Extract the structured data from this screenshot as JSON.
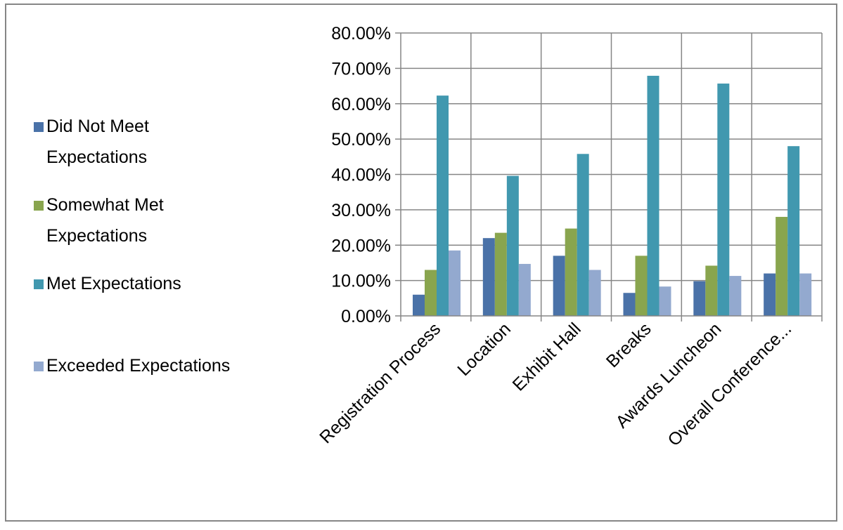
{
  "chart_data": {
    "type": "bar",
    "categories": [
      "Registration Process",
      "Location",
      "Exhibit Hall",
      "Breaks",
      "Awards Luncheon",
      "Overall Conference..."
    ],
    "series": [
      {
        "name": "Did Not Meet Expectations",
        "color": "#4a72a8",
        "values": [
          6.0,
          22.0,
          17.0,
          6.5,
          9.8,
          12.0
        ]
      },
      {
        "name": "Somewhat Met Expectations",
        "color": "#89a54e",
        "values": [
          13.0,
          23.5,
          24.7,
          17.0,
          14.2,
          28.0
        ]
      },
      {
        "name": "Met Expectations",
        "color": "#4198af",
        "values": [
          62.3,
          39.6,
          45.8,
          67.9,
          65.7,
          48.0
        ]
      },
      {
        "name": "Exceeded Expectations",
        "color": "#93a9cf",
        "values": [
          18.5,
          14.7,
          13.0,
          8.3,
          11.3,
          12.0
        ]
      }
    ],
    "legend_labels": [
      [
        "Did Not Meet",
        "Expectations"
      ],
      [
        "Somewhat Met",
        "Expectations"
      ],
      [
        "Met Expectations"
      ],
      [
        "Exceeded Expectations"
      ]
    ],
    "y_ticks": [
      "0.00%",
      "10.00%",
      "20.00%",
      "30.00%",
      "40.00%",
      "50.00%",
      "60.00%",
      "70.00%",
      "80.00%"
    ],
    "ylim": [
      0,
      80
    ],
    "y_unit": "percent",
    "grid": true,
    "legend_position": "left",
    "title": "",
    "xlabel": "",
    "ylabel": ""
  }
}
